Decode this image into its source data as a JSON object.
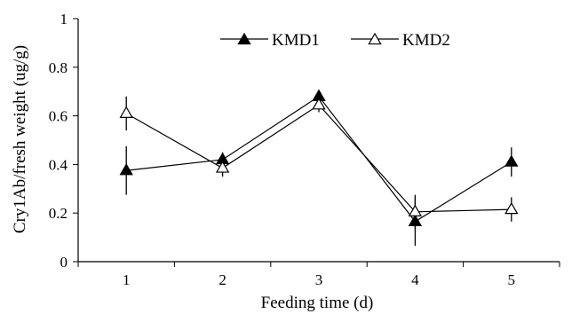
{
  "chart_data": {
    "type": "line",
    "xlabel": "Feeding time (d)",
    "ylabel": "Cry1Ab/fresh weight (ug/g)",
    "x": [
      1,
      2,
      3,
      4,
      5
    ],
    "x_tick_labels": [
      "1",
      "2",
      "3",
      "4",
      "5"
    ],
    "ylim": [
      0,
      1
    ],
    "y_ticks": [
      0,
      0.2,
      0.4,
      0.6,
      0.8,
      1
    ],
    "y_tick_labels": [
      "0",
      "0.2",
      "0.4",
      "0.6",
      "0.8",
      "1"
    ],
    "legend_position": "top",
    "grid": false,
    "series": [
      {
        "name": "KMD1",
        "marker": "filled-triangle",
        "color": "#000000",
        "values": [
          0.375,
          0.42,
          0.68,
          0.165,
          0.41
        ],
        "errors": [
          0.1,
          0.03,
          0.02,
          0.1,
          0.06
        ]
      },
      {
        "name": "KMD2",
        "marker": "open-triangle",
        "color": "#000000",
        "values": [
          0.61,
          0.385,
          0.645,
          0.205,
          0.215
        ],
        "errors": [
          0.07,
          0.035,
          0.03,
          0.07,
          0.05
        ]
      }
    ]
  }
}
